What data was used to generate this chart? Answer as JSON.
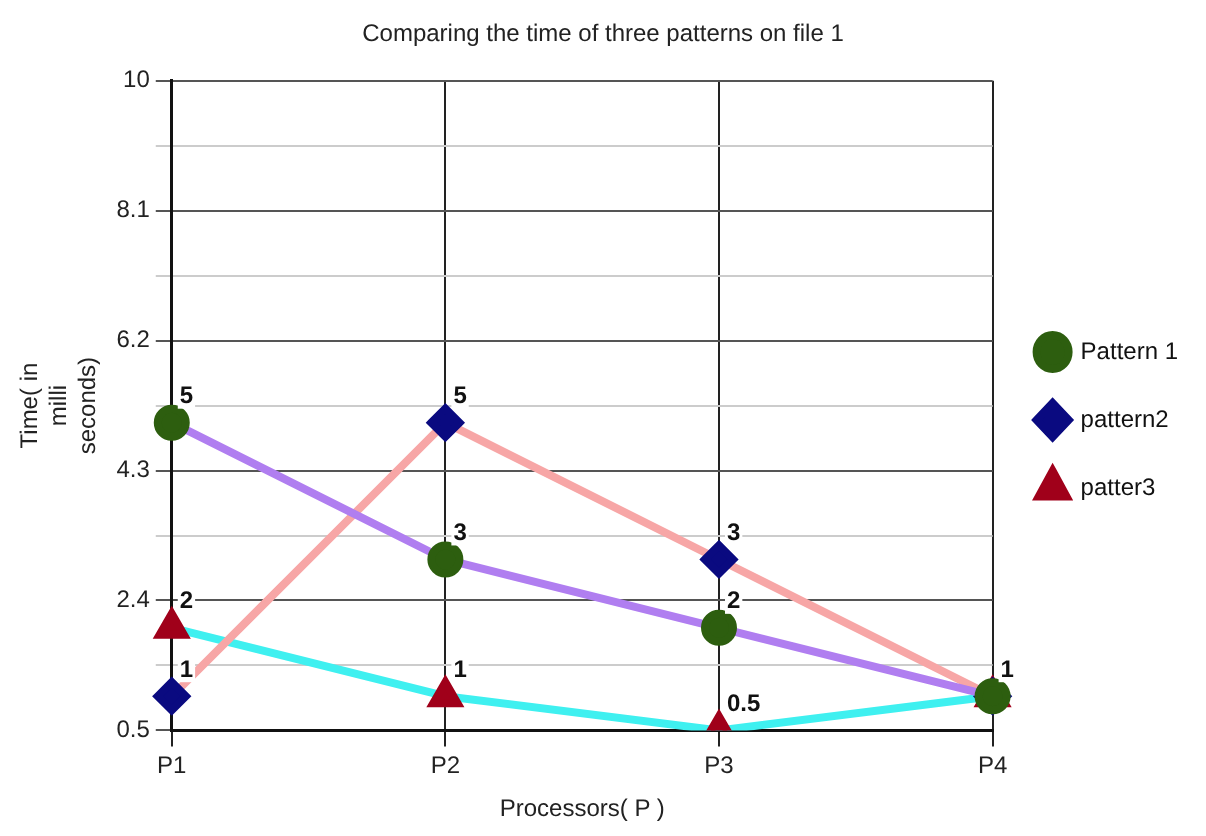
{
  "chart_data": {
    "type": "line",
    "title": "Comparing the time of three patterns on file 1",
    "xlabel": "Processors( P )",
    "ylabel": "Time( in milli seconds)",
    "categories": [
      "P1",
      "P2",
      "P3",
      "P4"
    ],
    "series": [
      {
        "name": "Pattern 1",
        "color": "#b07ef0",
        "colors": [
          "#2d5e0f",
          "#2d5e0f",
          "#2d5e0f",
          "#2d5e0f"
        ],
        "marker": "circle",
        "values": [
          5,
          3,
          2,
          1
        ],
        "value_labels": [
          "5",
          "3",
          "2",
          null
        ]
      },
      {
        "name": "pattern2",
        "color": "#f7a6a6",
        "colors": [
          "#0a0a80",
          "#0a0a80",
          "#0a0a80",
          "#0a0a80"
        ],
        "marker": "diamond",
        "values": [
          1,
          5,
          3,
          1
        ],
        "value_labels": [
          "1",
          "5",
          "3",
          null
        ]
      },
      {
        "name": "patter3",
        "color": "#3ff0f0",
        "colors": [
          "#a0001a",
          "#a0001a",
          "#a0001a",
          "#a0001a"
        ],
        "marker": "triangle",
        "values": [
          2,
          1,
          0.5,
          1
        ],
        "value_labels": [
          "2",
          "1",
          "0.5",
          "1"
        ]
      }
    ],
    "ylim": [
      0.5,
      10
    ],
    "yticks": [
      0.5,
      {
        "value": 1.45,
        "label": null
      },
      2.4,
      {
        "value": 3.35,
        "label": null
      },
      4.3,
      {
        "value": 5.25,
        "label": null
      },
      6.2,
      {
        "value": 7.15,
        "label": null
      },
      8.1,
      {
        "value": 9.05,
        "label": null
      },
      10
    ],
    "grid": true,
    "legend": "right"
  }
}
